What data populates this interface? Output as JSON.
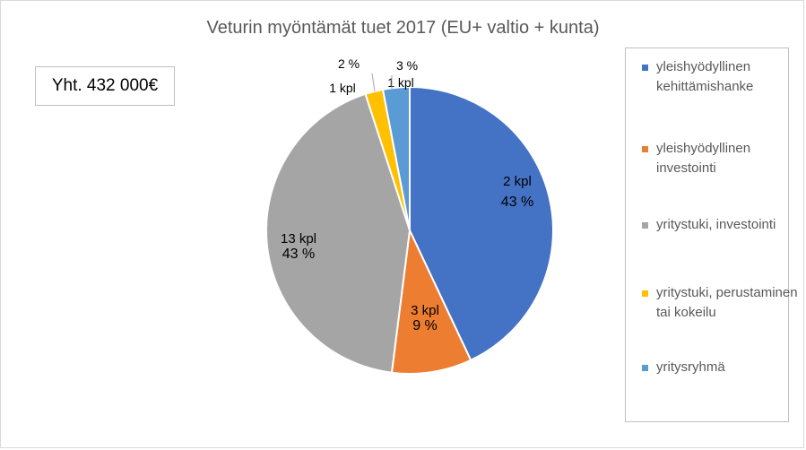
{
  "chart_data": {
    "type": "pie",
    "title": "Veturin myöntämät tuet 2017 (EU+ valtio + kunta)",
    "total_label": "Yht. 432 000€",
    "slices": [
      {
        "name": "yleishyödyllinen kehittämishanke",
        "count_label": "2 kpl",
        "pct_label": "43 %",
        "value": 43,
        "color": "#4472C4"
      },
      {
        "name": "yleishyödyllinen investointi",
        "count_label": "3 kpl",
        "pct_label": "9 %",
        "value": 9,
        "color": "#ED7D31"
      },
      {
        "name": "yritystuki, investointi",
        "count_label": "13 kpl",
        "pct_label": "43 %",
        "value": 43,
        "color": "#A5A5A5"
      },
      {
        "name": "yritystuki, perustaminen tai kokeilu",
        "count_label": "1 kpl",
        "pct_label": "2 %",
        "value": 2,
        "color": "#FFC000"
      },
      {
        "name": "yritysryhmä",
        "count_label": "1 kpl",
        "pct_label": "3 %",
        "value": 3,
        "color": "#5B9BD5"
      }
    ],
    "legend_position": "right"
  }
}
